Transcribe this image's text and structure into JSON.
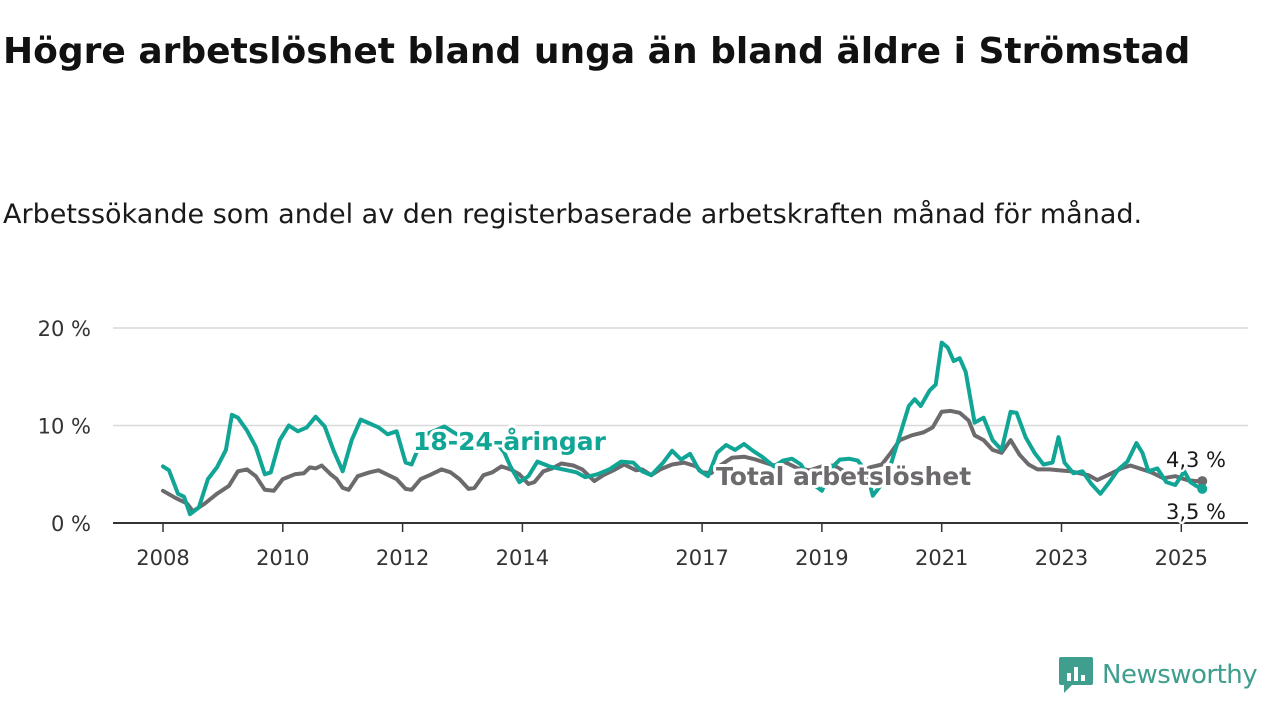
{
  "header": {
    "title": "Högre arbetslöshet bland unga än bland äldre i Strömstad",
    "subtitle": "Arbetssökande som andel av den registerbaserade arbetskraften månad för månad."
  },
  "brand": {
    "name": "Newsworthy",
    "icon": "newsworthy-logo-icon",
    "color": "#3f9e8e"
  },
  "chart_data": {
    "type": "line",
    "xlim": [
      2008,
      2025.5
    ],
    "ylim": [
      0,
      20
    ],
    "y_ticks": [
      0,
      10,
      20
    ],
    "y_tick_labels": [
      "0 %",
      "10 %",
      "20 %"
    ],
    "x_ticks": [
      2008,
      2010,
      2012,
      2014,
      2017,
      2019,
      2021,
      2023,
      2025
    ],
    "x_tick_labels": [
      "2008",
      "2010",
      "2012",
      "2014",
      "2017",
      "2019",
      "2021",
      "2023",
      "2025"
    ],
    "grid": true,
    "series": [
      {
        "name": "Total arbetslöshet",
        "color": "#6d6a6d",
        "points": [
          [
            2008.0,
            3.3
          ],
          [
            2008.2,
            2.6
          ],
          [
            2008.4,
            2.0
          ],
          [
            2008.5,
            1.2
          ],
          [
            2008.7,
            2.0
          ],
          [
            2008.9,
            3.0
          ],
          [
            2009.1,
            3.8
          ],
          [
            2009.25,
            5.3
          ],
          [
            2009.4,
            5.5
          ],
          [
            2009.55,
            4.8
          ],
          [
            2009.7,
            3.4
          ],
          [
            2009.85,
            3.3
          ],
          [
            2010.0,
            4.5
          ],
          [
            2010.2,
            5.0
          ],
          [
            2010.35,
            5.1
          ],
          [
            2010.45,
            5.7
          ],
          [
            2010.55,
            5.6
          ],
          [
            2010.65,
            5.9
          ],
          [
            2010.8,
            5.0
          ],
          [
            2010.9,
            4.5
          ],
          [
            2011.0,
            3.6
          ],
          [
            2011.1,
            3.4
          ],
          [
            2011.25,
            4.8
          ],
          [
            2011.45,
            5.2
          ],
          [
            2011.6,
            5.4
          ],
          [
            2011.8,
            4.8
          ],
          [
            2011.9,
            4.5
          ],
          [
            2012.05,
            3.5
          ],
          [
            2012.15,
            3.4
          ],
          [
            2012.3,
            4.5
          ],
          [
            2012.45,
            4.9
          ],
          [
            2012.65,
            5.5
          ],
          [
            2012.8,
            5.2
          ],
          [
            2012.95,
            4.5
          ],
          [
            2013.1,
            3.5
          ],
          [
            2013.2,
            3.6
          ],
          [
            2013.35,
            4.9
          ],
          [
            2013.5,
            5.2
          ],
          [
            2013.65,
            5.8
          ],
          [
            2013.8,
            5.5
          ],
          [
            2013.95,
            5.0
          ],
          [
            2014.1,
            4.0
          ],
          [
            2014.2,
            4.2
          ],
          [
            2014.35,
            5.3
          ],
          [
            2014.5,
            5.6
          ],
          [
            2014.65,
            6.1
          ],
          [
            2014.85,
            5.9
          ],
          [
            2015.0,
            5.5
          ],
          [
            2015.2,
            4.3
          ],
          [
            2015.35,
            4.9
          ],
          [
            2015.55,
            5.5
          ],
          [
            2015.7,
            6.0
          ],
          [
            2015.9,
            5.4
          ],
          [
            2016.0,
            5.5
          ],
          [
            2016.15,
            4.9
          ],
          [
            2016.3,
            5.5
          ],
          [
            2016.5,
            6.0
          ],
          [
            2016.7,
            6.2
          ],
          [
            2016.9,
            5.8
          ],
          [
            2017.0,
            5.2
          ],
          [
            2017.15,
            5.1
          ],
          [
            2017.3,
            5.9
          ],
          [
            2017.5,
            6.7
          ],
          [
            2017.7,
            6.8
          ],
          [
            2017.9,
            6.5
          ],
          [
            2018.0,
            6.3
          ],
          [
            2018.2,
            5.9
          ],
          [
            2018.4,
            6.2
          ],
          [
            2018.6,
            5.6
          ],
          [
            2018.8,
            5.4
          ],
          [
            2019.0,
            5.8
          ],
          [
            2019.2,
            5.9
          ],
          [
            2019.4,
            5.2
          ],
          [
            2019.6,
            5.0
          ],
          [
            2019.8,
            5.7
          ],
          [
            2020.0,
            6.0
          ],
          [
            2020.15,
            7.2
          ],
          [
            2020.3,
            8.5
          ],
          [
            2020.5,
            9.0
          ],
          [
            2020.7,
            9.3
          ],
          [
            2020.85,
            9.8
          ],
          [
            2021.0,
            11.4
          ],
          [
            2021.15,
            11.5
          ],
          [
            2021.3,
            11.3
          ],
          [
            2021.45,
            10.5
          ],
          [
            2021.55,
            9.0
          ],
          [
            2021.7,
            8.5
          ],
          [
            2021.85,
            7.5
          ],
          [
            2022.0,
            7.2
          ],
          [
            2022.15,
            8.5
          ],
          [
            2022.3,
            7.0
          ],
          [
            2022.45,
            6.0
          ],
          [
            2022.6,
            5.5
          ],
          [
            2022.8,
            5.5
          ],
          [
            2022.95,
            5.4
          ],
          [
            2023.15,
            5.3
          ],
          [
            2023.3,
            5.1
          ],
          [
            2023.45,
            4.9
          ],
          [
            2023.6,
            4.4
          ],
          [
            2023.8,
            5.0
          ],
          [
            2024.0,
            5.6
          ],
          [
            2024.15,
            5.9
          ],
          [
            2024.3,
            5.6
          ],
          [
            2024.5,
            5.2
          ],
          [
            2024.7,
            4.6
          ],
          [
            2024.9,
            4.8
          ],
          [
            2025.0,
            4.6
          ],
          [
            2025.1,
            4.4
          ],
          [
            2025.25,
            4.3
          ],
          [
            2025.35,
            4.3
          ]
        ]
      },
      {
        "name": "18-24-åringar",
        "color": "#11a596",
        "points": [
          [
            2008.0,
            5.8
          ],
          [
            2008.1,
            5.4
          ],
          [
            2008.25,
            3.0
          ],
          [
            2008.35,
            2.7
          ],
          [
            2008.45,
            0.9
          ],
          [
            2008.6,
            1.6
          ],
          [
            2008.75,
            4.5
          ],
          [
            2008.9,
            5.7
          ],
          [
            2009.05,
            7.5
          ],
          [
            2009.15,
            11.1
          ],
          [
            2009.25,
            10.8
          ],
          [
            2009.4,
            9.5
          ],
          [
            2009.55,
            7.8
          ],
          [
            2009.7,
            5.0
          ],
          [
            2009.8,
            5.2
          ],
          [
            2009.95,
            8.5
          ],
          [
            2010.1,
            10.0
          ],
          [
            2010.25,
            9.4
          ],
          [
            2010.4,
            9.8
          ],
          [
            2010.55,
            10.9
          ],
          [
            2010.7,
            9.9
          ],
          [
            2010.85,
            7.4
          ],
          [
            2011.0,
            5.3
          ],
          [
            2011.15,
            8.5
          ],
          [
            2011.3,
            10.6
          ],
          [
            2011.45,
            10.2
          ],
          [
            2011.6,
            9.8
          ],
          [
            2011.75,
            9.1
          ],
          [
            2011.9,
            9.4
          ],
          [
            2012.05,
            6.2
          ],
          [
            2012.15,
            6.0
          ],
          [
            2012.35,
            9.0
          ],
          [
            2012.55,
            9.5
          ],
          [
            2012.7,
            9.9
          ],
          [
            2012.85,
            9.3
          ],
          [
            2013.05,
            8.6
          ],
          [
            2013.2,
            7.6
          ],
          [
            2013.4,
            8.2
          ],
          [
            2013.55,
            8.4
          ],
          [
            2013.7,
            7.2
          ],
          [
            2013.8,
            5.8
          ],
          [
            2013.95,
            4.2
          ],
          [
            2014.1,
            4.8
          ],
          [
            2014.25,
            6.3
          ],
          [
            2014.45,
            5.8
          ],
          [
            2014.6,
            5.6
          ],
          [
            2014.75,
            5.4
          ],
          [
            2014.9,
            5.2
          ],
          [
            2015.05,
            4.7
          ],
          [
            2015.25,
            5.0
          ],
          [
            2015.45,
            5.5
          ],
          [
            2015.65,
            6.3
          ],
          [
            2015.85,
            6.2
          ],
          [
            2016.0,
            5.3
          ],
          [
            2016.15,
            4.9
          ],
          [
            2016.35,
            6.2
          ],
          [
            2016.5,
            7.4
          ],
          [
            2016.65,
            6.5
          ],
          [
            2016.8,
            7.1
          ],
          [
            2016.95,
            5.4
          ],
          [
            2017.1,
            4.8
          ],
          [
            2017.25,
            7.2
          ],
          [
            2017.4,
            8.0
          ],
          [
            2017.55,
            7.5
          ],
          [
            2017.7,
            8.1
          ],
          [
            2017.85,
            7.4
          ],
          [
            2018.0,
            6.8
          ],
          [
            2018.2,
            5.8
          ],
          [
            2018.35,
            6.4
          ],
          [
            2018.5,
            6.6
          ],
          [
            2018.65,
            6.0
          ],
          [
            2018.85,
            4.0
          ],
          [
            2019.0,
            3.3
          ],
          [
            2019.15,
            5.6
          ],
          [
            2019.3,
            6.5
          ],
          [
            2019.45,
            6.6
          ],
          [
            2019.6,
            6.4
          ],
          [
            2019.75,
            5.2
          ],
          [
            2019.85,
            2.8
          ],
          [
            2020.0,
            4.0
          ],
          [
            2020.15,
            6.0
          ],
          [
            2020.3,
            9.0
          ],
          [
            2020.45,
            12.0
          ],
          [
            2020.55,
            12.7
          ],
          [
            2020.65,
            12.0
          ],
          [
            2020.8,
            13.6
          ],
          [
            2020.9,
            14.2
          ],
          [
            2021.0,
            18.5
          ],
          [
            2021.1,
            18.0
          ],
          [
            2021.2,
            16.6
          ],
          [
            2021.3,
            16.9
          ],
          [
            2021.4,
            15.5
          ],
          [
            2021.55,
            10.3
          ],
          [
            2021.7,
            10.8
          ],
          [
            2021.85,
            8.5
          ],
          [
            2022.0,
            7.5
          ],
          [
            2022.15,
            11.4
          ],
          [
            2022.25,
            11.3
          ],
          [
            2022.4,
            8.8
          ],
          [
            2022.55,
            7.2
          ],
          [
            2022.7,
            6.0
          ],
          [
            2022.85,
            6.2
          ],
          [
            2022.95,
            8.8
          ],
          [
            2023.05,
            6.2
          ],
          [
            2023.2,
            5.1
          ],
          [
            2023.35,
            5.3
          ],
          [
            2023.5,
            4.0
          ],
          [
            2023.65,
            3.0
          ],
          [
            2023.8,
            4.2
          ],
          [
            2023.95,
            5.5
          ],
          [
            2024.1,
            6.3
          ],
          [
            2024.25,
            8.2
          ],
          [
            2024.35,
            7.2
          ],
          [
            2024.45,
            5.3
          ],
          [
            2024.6,
            5.6
          ],
          [
            2024.75,
            4.2
          ],
          [
            2024.9,
            3.9
          ],
          [
            2025.05,
            5.3
          ],
          [
            2025.15,
            4.2
          ],
          [
            2025.25,
            3.8
          ],
          [
            2025.35,
            3.5
          ]
        ]
      }
    ],
    "annotations": {
      "series_labels": [
        "Total arbetslöshet",
        "18-24-åringar"
      ],
      "end_value_total": "4,3 %",
      "end_value_young": "3,5 %"
    }
  }
}
